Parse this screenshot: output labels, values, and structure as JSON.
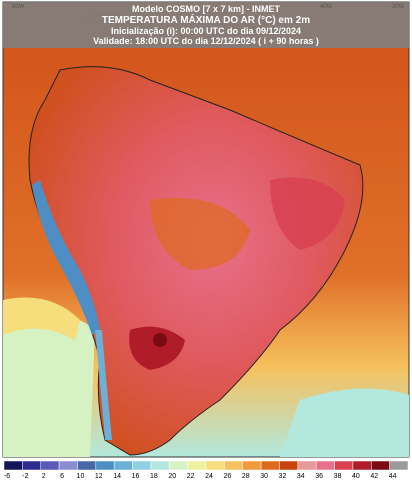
{
  "header": {
    "model": "Modelo COSMO [7 x 7 km] - INMET",
    "title": "TEMPERATURA MÁXIMA DO AR (°C) em 2m",
    "init": "Inicialização (i): 00:00 UTC do dia 09/12/2024",
    "valid": "Validade: 18:00 UTC do dia 12/12/2024 ( i + 90 horas )"
  },
  "longitude_labels": [
    "80W",
    "40W",
    "30W"
  ],
  "colorbar": {
    "ticks": [
      -6,
      -2,
      2,
      6,
      10,
      12,
      14,
      16,
      18,
      20,
      22,
      24,
      26,
      28,
      30,
      32,
      34,
      36,
      38,
      40,
      42,
      44
    ],
    "colors": [
      "#14145a",
      "#2c2c90",
      "#5a5ab8",
      "#8c8cd4",
      "#4668a8",
      "#4f8ec4",
      "#6cb0d8",
      "#8fd0e2",
      "#b3e8de",
      "#d6f2c2",
      "#eef2a0",
      "#f6de7c",
      "#f6c05c",
      "#f09a3c",
      "#e06a1c",
      "#c8460c",
      "#e89a9a",
      "#e8708a",
      "#d84050",
      "#b01c28",
      "#7a0a14",
      "#9a9a9a"
    ]
  }
}
